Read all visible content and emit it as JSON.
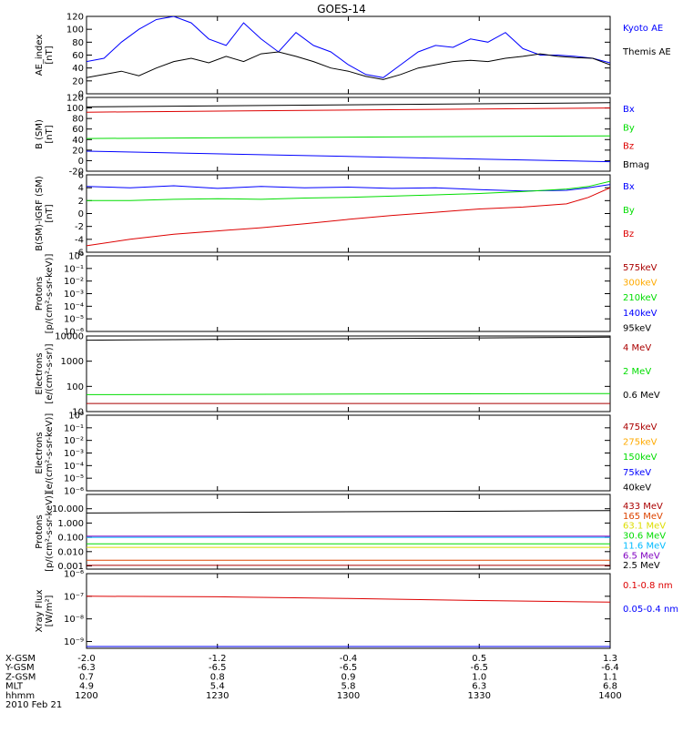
{
  "title": "GOES-14",
  "date_label": "2010 Feb 21",
  "colors": {
    "black": "#000000",
    "blue": "#0000ff",
    "red": "#dd0000",
    "green": "#00dd00",
    "orange": "#ffaa00",
    "cyan": "#00bbff",
    "yellow": "#dddd00",
    "purple": "#8000c0",
    "darkred": "#aa0000",
    "orangered": "#dd4400"
  },
  "x_axis": {
    "ticks": [
      0,
      30,
      60,
      90,
      120
    ],
    "rows": [
      {
        "label": "X-GSM",
        "values": [
          "-2.0",
          "-1.2",
          "-0.4",
          "0.5",
          "1.3"
        ]
      },
      {
        "label": "Y-GSM",
        "values": [
          "-6.3",
          "-6.5",
          "-6.5",
          "-6.5",
          "-6.4"
        ]
      },
      {
        "label": "Z-GSM",
        "values": [
          "0.7",
          "0.8",
          "0.9",
          "1.0",
          "1.1"
        ]
      },
      {
        "label": "MLT",
        "values": [
          "4.9",
          "5.4",
          "5.8",
          "6.3",
          "6.8"
        ]
      },
      {
        "label": "hhmm",
        "values": [
          "1200",
          "1230",
          "1300",
          "1330",
          "1400"
        ]
      }
    ]
  },
  "chart_data": [
    {
      "type": "line",
      "id": "ae",
      "ylabel": [
        "AE_index",
        "[nT]"
      ],
      "yscale": "linear",
      "ylim": [
        0,
        120
      ],
      "yticks": [
        0,
        20,
        40,
        60,
        80,
        100,
        120
      ],
      "yticklabels": [
        "0",
        "20",
        "40",
        "60",
        "80",
        "100",
        "120"
      ],
      "x": [
        0,
        4,
        8,
        12,
        16,
        20,
        24,
        28,
        32,
        36,
        40,
        44,
        48,
        52,
        56,
        60,
        64,
        68,
        72,
        76,
        80,
        84,
        88,
        92,
        96,
        100,
        104,
        108,
        112,
        116,
        120
      ],
      "series": [
        {
          "name": "Kyoto AE",
          "color": "blue",
          "values": [
            50,
            55,
            80,
            100,
            115,
            120,
            110,
            85,
            75,
            110,
            85,
            65,
            95,
            75,
            65,
            45,
            30,
            25,
            45,
            65,
            75,
            72,
            85,
            80,
            95,
            70,
            60,
            60,
            58,
            55,
            48
          ]
        },
        {
          "name": "Themis AE",
          "color": "black",
          "values": [
            25,
            30,
            35,
            28,
            40,
            50,
            55,
            48,
            58,
            50,
            62,
            65,
            58,
            50,
            40,
            35,
            27,
            22,
            30,
            40,
            45,
            50,
            52,
            50,
            55,
            58,
            62,
            58,
            56,
            55,
            45
          ]
        }
      ]
    },
    {
      "type": "line",
      "id": "b",
      "ylabel": [
        "B (SM)",
        "[nT]"
      ],
      "yscale": "linear",
      "ylim": [
        -20,
        120
      ],
      "yticks": [
        -20,
        0,
        20,
        40,
        60,
        80,
        100,
        120
      ],
      "yticklabels": [
        "-20",
        "0",
        "20",
        "40",
        "60",
        "80",
        "100",
        "120"
      ],
      "x": [
        0,
        120
      ],
      "series": [
        {
          "name": "Bx",
          "color": "blue",
          "values": [
            18,
            -2
          ]
        },
        {
          "name": "By",
          "color": "green",
          "values": [
            42,
            47
          ]
        },
        {
          "name": "Bz",
          "color": "red",
          "values": [
            92,
            100
          ]
        },
        {
          "name": "Bmag",
          "color": "black",
          "values": [
            102,
            110
          ]
        }
      ]
    },
    {
      "type": "line",
      "id": "db",
      "ylabel": [
        "B(SM)-IGRF (SM)",
        "[nT]"
      ],
      "yscale": "linear",
      "ylim": [
        -6,
        6
      ],
      "yticks": [
        -6,
        -4,
        -2,
        0,
        2,
        4,
        6
      ],
      "yticklabels": [
        "-6",
        "-4",
        "-2",
        "0",
        "2",
        "4",
        "6"
      ],
      "x": [
        0,
        10,
        20,
        30,
        40,
        50,
        60,
        70,
        80,
        90,
        100,
        110,
        115,
        120
      ],
      "series": [
        {
          "name": "Bx",
          "color": "blue",
          "values": [
            4.2,
            4.0,
            4.3,
            3.9,
            4.2,
            4.0,
            4.1,
            3.9,
            4.0,
            3.7,
            3.5,
            3.6,
            4.0,
            4.5
          ]
        },
        {
          "name": "By",
          "color": "green",
          "values": [
            2.0,
            2.0,
            2.2,
            2.3,
            2.2,
            2.4,
            2.5,
            2.7,
            2.9,
            3.1,
            3.4,
            3.8,
            4.2,
            5.0
          ]
        },
        {
          "name": "Bz",
          "color": "red",
          "values": [
            -5.0,
            -4.0,
            -3.2,
            -2.7,
            -2.2,
            -1.6,
            -0.9,
            -0.3,
            0.2,
            0.7,
            1.0,
            1.5,
            2.5,
            4.0
          ]
        }
      ]
    },
    {
      "type": "line",
      "id": "protons_low",
      "ylabel": [
        "Protons",
        "[p/(cm²-s-sr-keV)]"
      ],
      "yscale": "log",
      "ylim": [
        1e-06,
        1
      ],
      "yticks": [
        1,
        0.1,
        0.01,
        0.001,
        0.0001,
        1e-05,
        1e-06
      ],
      "yticklabels": [
        "10⁰",
        "10⁻¹",
        "10⁻²",
        "10⁻³",
        "10⁻⁴",
        "10⁻⁵",
        "10⁻⁶"
      ],
      "x": [],
      "series": [
        {
          "name": "575keV",
          "color": "darkred",
          "values": []
        },
        {
          "name": "300keV",
          "color": "orange",
          "values": []
        },
        {
          "name": "210keV",
          "color": "green",
          "values": []
        },
        {
          "name": "140keV",
          "color": "blue",
          "values": []
        },
        {
          "name": "95keV",
          "color": "black",
          "values": []
        }
      ]
    },
    {
      "type": "line",
      "id": "electrons_high",
      "ylabel": [
        "Electrons",
        "[e/(cm²-s-sr)]"
      ],
      "yscale": "log",
      "ylim": [
        10,
        10000
      ],
      "yticks": [
        10,
        100,
        1000,
        10000
      ],
      "yticklabels": [
        "10",
        "100",
        "1000",
        "10000"
      ],
      "x": [
        0,
        120
      ],
      "series": [
        {
          "name": "4 MeV",
          "color": "darkred",
          "values": [
            21,
            21
          ]
        },
        {
          "name": "2 MeV",
          "color": "green",
          "values": [
            47,
            52
          ]
        },
        {
          "name": "0.6 MeV",
          "color": "black",
          "values": [
            6800,
            9000
          ]
        }
      ]
    },
    {
      "type": "line",
      "id": "electrons_low",
      "ylabel": [
        "Electrons",
        "[e/(cm²-s-sr-keV)]"
      ],
      "yscale": "log",
      "ylim": [
        1e-06,
        1
      ],
      "yticks": [
        1,
        0.1,
        0.01,
        0.001,
        0.0001,
        1e-05,
        1e-06
      ],
      "yticklabels": [
        "10⁰",
        "10⁻¹",
        "10⁻²",
        "10⁻³",
        "10⁻⁴",
        "10⁻⁵",
        "10⁻⁶"
      ],
      "x": [],
      "series": [
        {
          "name": "475keV",
          "color": "darkred",
          "values": []
        },
        {
          "name": "275keV",
          "color": "orange",
          "values": []
        },
        {
          "name": "150keV",
          "color": "green",
          "values": []
        },
        {
          "name": "75keV",
          "color": "blue",
          "values": []
        },
        {
          "name": "40keV",
          "color": "black",
          "values": []
        }
      ]
    },
    {
      "type": "line",
      "id": "protons_high",
      "ylabel": [
        "Protons",
        "[p/(cm²-s-sr-keV)]"
      ],
      "yscale": "log",
      "ylim": [
        0.0006,
        100
      ],
      "yticks": [
        0.001,
        0.01,
        0.1,
        1,
        10
      ],
      "yticklabels": [
        "0.001",
        "0.010",
        "0.100",
        "1.000",
        "10.000"
      ],
      "x": [
        0,
        120
      ],
      "series": [
        {
          "name": "433 MeV",
          "color": "darkred",
          "values": [
            0.0011,
            0.0011
          ]
        },
        {
          "name": "165 MeV",
          "color": "orangered",
          "values": [
            0.0025,
            0.0025
          ]
        },
        {
          "name": "63.1 MeV",
          "color": "yellow",
          "values": [
            0.02,
            0.02
          ]
        },
        {
          "name": "30.6 MeV",
          "color": "green",
          "values": [
            0.035,
            0.035
          ]
        },
        {
          "name": "11.6 MeV",
          "color": "cyan",
          "values": [
            0.1,
            0.1
          ]
        },
        {
          "name": "6.5 MeV",
          "color": "purple",
          "values": [
            0.12,
            0.12
          ]
        },
        {
          "name": "2.5 MeV",
          "color": "black",
          "values": [
            5,
            7.5
          ]
        }
      ]
    },
    {
      "type": "line",
      "id": "xray",
      "ylabel": [
        "Xray Flux",
        "[W/m²]"
      ],
      "yscale": "log",
      "ylim": [
        5e-10,
        1e-06
      ],
      "yticks": [
        1e-09,
        1e-08,
        1e-07,
        1e-06
      ],
      "yticklabels": [
        "10⁻⁹",
        "10⁻⁸",
        "10⁻⁷",
        "10⁻⁶"
      ],
      "x": [
        0,
        30,
        60,
        90,
        120
      ],
      "series": [
        {
          "name": "0.1-0.8 nm",
          "color": "red",
          "values": [
            1e-07,
            9.5e-08,
            8e-08,
            6.5e-08,
            5.5e-08
          ]
        },
        {
          "name": "0.05-0.4 nm",
          "color": "blue",
          "values": [
            6e-10,
            6e-10,
            6e-10,
            6e-10,
            6e-10
          ]
        }
      ]
    }
  ]
}
